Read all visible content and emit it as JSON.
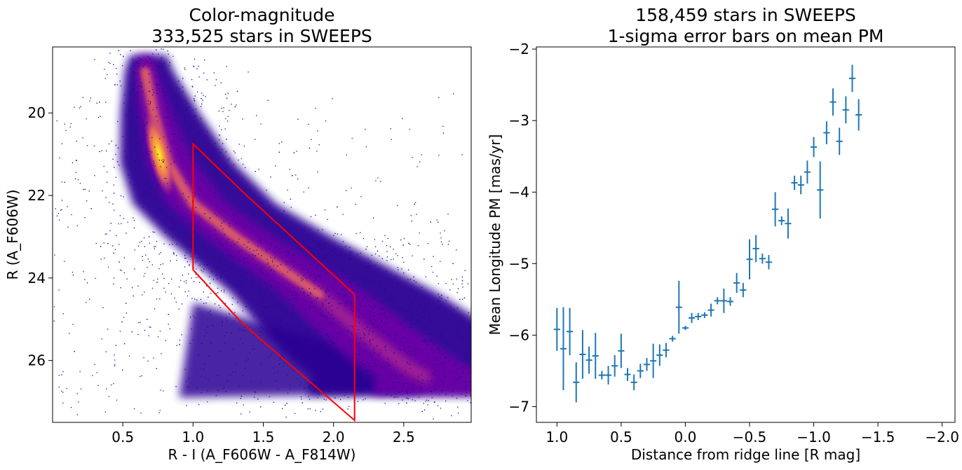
{
  "chart_data": [
    {
      "type": "scatter",
      "title_line1": "Color-magnitude",
      "title_line2": "333,525 stars in SWEEPS",
      "xlabel": "R - I (A_F606W - A_F814W)",
      "ylabel": "R (A_F606W)",
      "xlim": [
        0.0,
        2.98
      ],
      "ylim": [
        27.5,
        18.4
      ],
      "y_inverted": true,
      "xticks": [
        0.5,
        1.0,
        1.5,
        2.0,
        2.5
      ],
      "xtick_labels": [
        "0.5",
        "1.0",
        "1.5",
        "2.0",
        "2.5"
      ],
      "yticks": [
        20,
        22,
        24,
        26
      ],
      "ytick_labels": [
        "20",
        "22",
        "24",
        "26"
      ],
      "colormap": "plasma (density colored)",
      "sequence_ridge": [
        [
          0.66,
          19.0
        ],
        [
          0.72,
          20.0
        ],
        [
          0.82,
          21.2
        ],
        [
          1.0,
          22.2
        ],
        [
          1.3,
          23.0
        ],
        [
          1.6,
          23.7
        ],
        [
          1.9,
          24.4
        ],
        [
          2.2,
          25.3
        ],
        [
          2.5,
          26.1
        ],
        [
          2.65,
          26.4
        ]
      ],
      "selection_polygon": {
        "color": "#ff0000",
        "points": [
          [
            1.0,
            20.75
          ],
          [
            1.35,
            21.9
          ],
          [
            2.15,
            24.4
          ],
          [
            2.15,
            27.45
          ],
          [
            1.35,
            25.1
          ],
          [
            1.0,
            23.8
          ]
        ]
      }
    },
    {
      "type": "scatter",
      "subtype": "errorbar",
      "title_line1": "158,459 stars in SWEEPS",
      "title_line2": "1-sigma error bars on mean PM",
      "xlabel": "Distance from ridge line [R mag]",
      "ylabel": "Mean Longitude PM [mas/yr]",
      "xlim": [
        1.16,
        -2.1
      ],
      "ylim": [
        -7.22,
        -1.97
      ],
      "x_inverted": true,
      "xticks": [
        1.0,
        0.5,
        0.0,
        -0.5,
        -1.0,
        -1.5,
        -2.0
      ],
      "xtick_labels": [
        "1.0",
        "0.5",
        "0.0",
        "−0.5",
        "−1.0",
        "−1.5",
        "−2.0"
      ],
      "yticks": [
        -2,
        -3,
        -4,
        -5,
        -6,
        -7
      ],
      "ytick_labels": [
        "−2",
        "−3",
        "−4",
        "−5",
        "−6",
        "−7"
      ],
      "color": "#1f77b4",
      "bin_half_width": 0.025,
      "points": [
        {
          "x": 1.0,
          "y": -5.92,
          "yerr": 0.3
        },
        {
          "x": 0.95,
          "y": -6.19,
          "yerr": 0.58
        },
        {
          "x": 0.9,
          "y": -5.95,
          "yerr": 0.33
        },
        {
          "x": 0.85,
          "y": -6.66,
          "yerr": 0.28
        },
        {
          "x": 0.8,
          "y": -6.27,
          "yerr": 0.34
        },
        {
          "x": 0.75,
          "y": -6.35,
          "yerr": 0.19
        },
        {
          "x": 0.7,
          "y": -6.29,
          "yerr": 0.32
        },
        {
          "x": 0.65,
          "y": -6.56,
          "yerr": 0.06
        },
        {
          "x": 0.6,
          "y": -6.56,
          "yerr": 0.13
        },
        {
          "x": 0.55,
          "y": -6.43,
          "yerr": 0.15
        },
        {
          "x": 0.5,
          "y": -6.22,
          "yerr": 0.24
        },
        {
          "x": 0.45,
          "y": -6.55,
          "yerr": 0.09
        },
        {
          "x": 0.4,
          "y": -6.66,
          "yerr": 0.11
        },
        {
          "x": 0.35,
          "y": -6.5,
          "yerr": 0.1
        },
        {
          "x": 0.3,
          "y": -6.41,
          "yerr": 0.09
        },
        {
          "x": 0.25,
          "y": -6.36,
          "yerr": 0.24
        },
        {
          "x": 0.2,
          "y": -6.28,
          "yerr": 0.15
        },
        {
          "x": 0.15,
          "y": -6.21,
          "yerr": 0.1
        },
        {
          "x": 0.1,
          "y": -6.05,
          "yerr": 0.04
        },
        {
          "x": 0.05,
          "y": -5.61,
          "yerr": 0.37
        },
        {
          "x": 0.0,
          "y": -5.9,
          "yerr": 0.03
        },
        {
          "x": -0.05,
          "y": -5.76,
          "yerr": 0.07
        },
        {
          "x": -0.1,
          "y": -5.74,
          "yerr": 0.05
        },
        {
          "x": -0.15,
          "y": -5.72,
          "yerr": 0.04
        },
        {
          "x": -0.2,
          "y": -5.65,
          "yerr": 0.09
        },
        {
          "x": -0.25,
          "y": -5.52,
          "yerr": 0.05
        },
        {
          "x": -0.3,
          "y": -5.52,
          "yerr": 0.17
        },
        {
          "x": -0.35,
          "y": -5.53,
          "yerr": 0.06
        },
        {
          "x": -0.4,
          "y": -5.27,
          "yerr": 0.14
        },
        {
          "x": -0.45,
          "y": -5.37,
          "yerr": 0.1
        },
        {
          "x": -0.5,
          "y": -4.94,
          "yerr": 0.28
        },
        {
          "x": -0.55,
          "y": -4.79,
          "yerr": 0.19
        },
        {
          "x": -0.6,
          "y": -4.93,
          "yerr": 0.07
        },
        {
          "x": -0.65,
          "y": -4.98,
          "yerr": 0.1
        },
        {
          "x": -0.7,
          "y": -4.24,
          "yerr": 0.24
        },
        {
          "x": -0.75,
          "y": -4.4,
          "yerr": 0.06
        },
        {
          "x": -0.8,
          "y": -4.44,
          "yerr": 0.21
        },
        {
          "x": -0.85,
          "y": -3.87,
          "yerr": 0.1
        },
        {
          "x": -0.9,
          "y": -3.9,
          "yerr": 0.13
        },
        {
          "x": -0.95,
          "y": -3.72,
          "yerr": 0.16
        },
        {
          "x": -1.0,
          "y": -3.37,
          "yerr": 0.14
        },
        {
          "x": -1.05,
          "y": -3.97,
          "yerr": 0.4
        },
        {
          "x": -1.1,
          "y": -3.17,
          "yerr": 0.16
        },
        {
          "x": -1.15,
          "y": -2.74,
          "yerr": 0.19
        },
        {
          "x": -1.2,
          "y": -3.29,
          "yerr": 0.19
        },
        {
          "x": -1.25,
          "y": -2.85,
          "yerr": 0.19
        },
        {
          "x": -1.3,
          "y": -2.41,
          "yerr": 0.19
        },
        {
          "x": -1.35,
          "y": -2.92,
          "yerr": 0.22
        }
      ]
    }
  ]
}
